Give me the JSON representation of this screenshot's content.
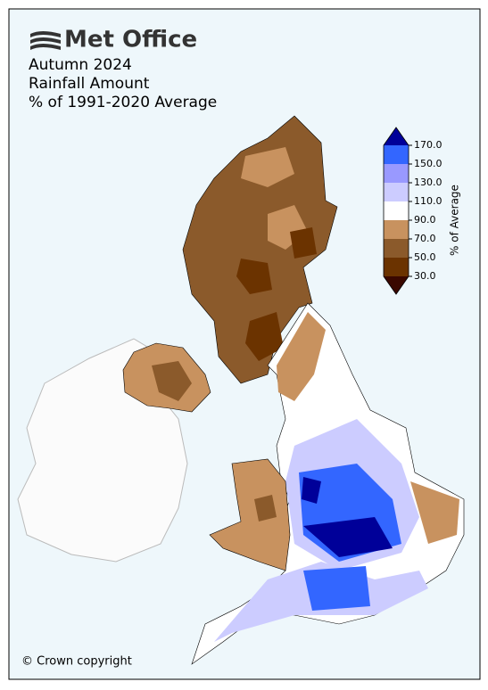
{
  "header": {
    "logo": "Met Office",
    "title": [
      "Autumn 2024",
      "Rainfall Amount",
      "% of 1991-2020 Average"
    ]
  },
  "colorbar": {
    "label": "% of Average",
    "ticks": [
      {
        "value": 30,
        "label": "30.0"
      },
      {
        "value": 50,
        "label": "50.0"
      },
      {
        "value": 70,
        "label": "70.0"
      },
      {
        "value": 90,
        "label": "90.0"
      },
      {
        "value": 110,
        "label": "110.0"
      },
      {
        "value": 130,
        "label": "130.0"
      },
      {
        "value": 150,
        "label": "150.0"
      },
      {
        "value": 170,
        "label": "170.0"
      }
    ],
    "colors": [
      "#3a0800",
      "#6b3300",
      "#8b5a2b",
      "#c8925f",
      "#ffffff",
      "#ccccff",
      "#9999ff",
      "#3366ff",
      "#000099"
    ]
  },
  "footer": "© Crown copyright"
}
